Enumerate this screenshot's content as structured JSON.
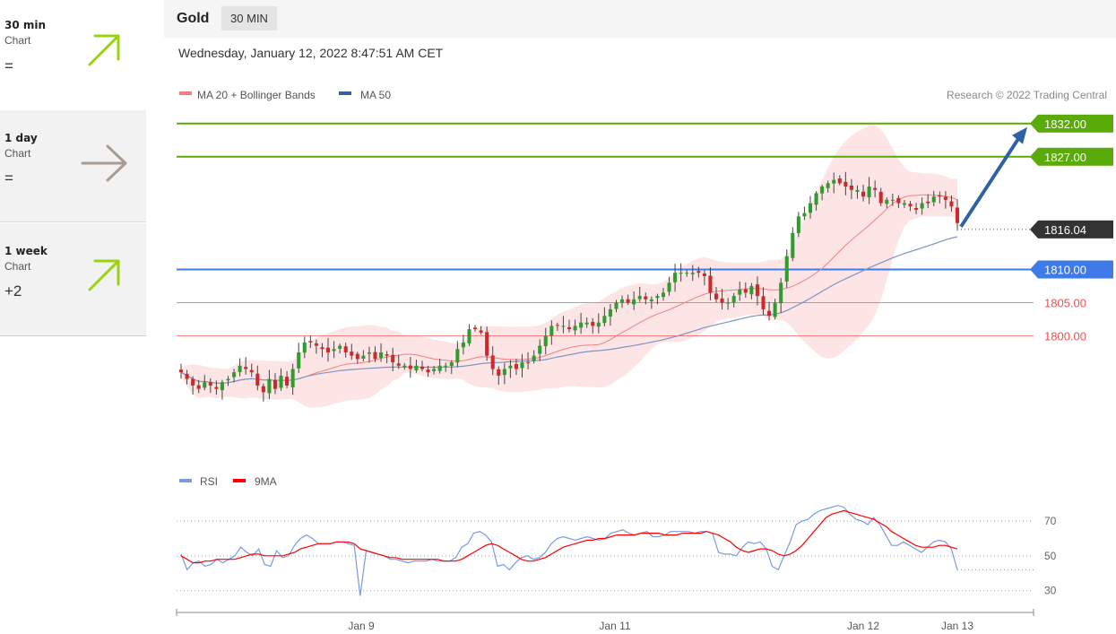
{
  "sidebar": {
    "timeframes": [
      {
        "title": "30 min",
        "subtitle": "Chart",
        "score": "=",
        "direction": "up",
        "arrow_icon": "arrow-up-right-icon",
        "color": "#9bd40f"
      },
      {
        "title": "1 day",
        "subtitle": "Chart",
        "score": "=",
        "direction": "neutral",
        "arrow_icon": "arrow-right-icon",
        "color": "#a79c91"
      },
      {
        "title": "1 week",
        "subtitle": "Chart",
        "score": "+2",
        "direction": "up",
        "arrow_icon": "arrow-up-right-icon",
        "color": "#9bd40f"
      }
    ]
  },
  "header": {
    "instrument": "Gold",
    "period": "30 MIN"
  },
  "datetime": "Wednesday, January 12, 2022 8:47:51 AM CET",
  "legend": {
    "ma20": "MA 20 + Bollinger Bands",
    "ma50": "MA 50",
    "ma20_color": "#f08080",
    "ma50_color": "#3a5fa0"
  },
  "credit": "Research © 2022 Trading Central",
  "rsi_legend": {
    "rsi": "RSI",
    "ma9": "9MA",
    "rsi_color": "#7a9ae0",
    "ma9_color": "#ff0000"
  },
  "chart_data": {
    "type": "candlestick",
    "x_ticks": [
      "Jan 9",
      "Jan 11",
      "Jan 12",
      "Jan 13"
    ],
    "ylim": [
      1781,
      1834
    ],
    "current_price": 1816.04,
    "levels": [
      {
        "value": 1832.0,
        "label": "1832.00",
        "kind": "target",
        "color": "#5aaa0a"
      },
      {
        "value": 1827.0,
        "label": "1827.00",
        "kind": "target",
        "color": "#5aaa0a"
      },
      {
        "value": 1810.0,
        "label": "1810.00",
        "kind": "pivot",
        "color": "#3e7be8"
      },
      {
        "value": 1805.0,
        "label": "1805.00",
        "kind": "support",
        "color": "#f05050"
      },
      {
        "value": 1800.0,
        "label": "1800.00",
        "kind": "support",
        "color": "#f05050"
      }
    ],
    "closes": [
      1794.5,
      1793.5,
      1792.5,
      1792.0,
      1793.0,
      1792.5,
      1792.0,
      1793.0,
      1793.5,
      1794.5,
      1795.5,
      1795.0,
      1794.5,
      1792.5,
      1791.5,
      1793.5,
      1792.0,
      1794.0,
      1792.5,
      1795.0,
      1797.5,
      1799.0,
      1799.0,
      1798.5,
      1798.0,
      1797.5,
      1798.0,
      1798.5,
      1797.5,
      1797.0,
      1796.5,
      1797.0,
      1797.5,
      1796.5,
      1797.5,
      1797.0,
      1796.0,
      1795.5,
      1795.5,
      1795.0,
      1795.5,
      1795.0,
      1794.5,
      1795.0,
      1795.5,
      1795.5,
      1796.0,
      1798.0,
      1799.0,
      1801.0,
      1801.0,
      1800.5,
      1797.0,
      1795.0,
      1794.0,
      1795.0,
      1795.5,
      1795.0,
      1796.0,
      1796.0,
      1797.0,
      1798.5,
      1800.0,
      1801.5,
      1801.5,
      1801.5,
      1801.0,
      1801.5,
      1802.0,
      1802.0,
      1801.5,
      1802.0,
      1803.0,
      1804.0,
      1805.0,
      1805.5,
      1805.0,
      1805.5,
      1806.0,
      1805.5,
      1805.5,
      1806.0,
      1806.5,
      1808.0,
      1809.5,
      1809.5,
      1809.5,
      1809.5,
      1809.5,
      1809.0,
      1806.5,
      1805.5,
      1805.0,
      1805.0,
      1806.0,
      1807.0,
      1806.5,
      1807.5,
      1806.0,
      1804.0,
      1803.0,
      1805.0,
      1808.0,
      1812.0,
      1815.5,
      1818.0,
      1818.5,
      1820.0,
      1821.5,
      1822.5,
      1823.0,
      1823.5,
      1823.0,
      1822.5,
      1822.0,
      1822.0,
      1821.0,
      1822.5,
      1822.0,
      1820.0,
      1820.5,
      1820.5,
      1820.0,
      1820.0,
      1819.5,
      1819.0,
      1820.0,
      1820.0,
      1821.0,
      1821.0,
      1820.5,
      1819.5,
      1817.0
    ],
    "ma20_label": "MA 20 + Bollinger Bands",
    "ma50_label": "MA 50",
    "rsi": {
      "ylim": [
        20,
        85
      ],
      "ticks": [
        70,
        50,
        30
      ],
      "values": [
        51,
        42,
        46,
        47,
        44,
        45,
        48,
        46,
        48,
        50,
        55,
        52,
        50,
        54,
        45,
        44,
        53,
        49,
        50,
        56,
        60,
        62,
        60,
        57,
        57,
        57,
        58,
        58,
        57,
        56,
        27,
        53,
        52,
        51,
        50,
        48,
        48,
        47,
        46,
        47,
        47,
        47,
        48,
        47,
        47,
        47,
        49,
        55,
        57,
        63,
        64,
        62,
        58,
        44,
        45,
        42,
        46,
        49,
        50,
        48,
        49,
        52,
        57,
        60,
        61,
        60,
        59,
        60,
        61,
        60,
        59,
        60,
        63,
        64,
        65,
        63,
        62,
        63,
        64,
        61,
        61,
        62,
        64,
        64,
        64,
        64,
        63,
        64,
        64,
        63,
        52,
        51,
        51,
        50,
        55,
        58,
        57,
        58,
        54,
        44,
        42,
        50,
        58,
        68,
        70,
        71,
        74,
        76,
        77,
        78,
        79,
        78,
        74,
        71,
        70,
        68,
        72,
        68,
        62,
        56,
        56,
        58,
        56,
        54,
        52,
        55,
        58,
        59,
        58,
        54,
        42
      ],
      "ma9": [
        50,
        48,
        46,
        46,
        47,
        47,
        48,
        48,
        48,
        48,
        49,
        50,
        51,
        51,
        50,
        50,
        50,
        50,
        51,
        52,
        54,
        55,
        56,
        57,
        57,
        57,
        58,
        58,
        58,
        57,
        54,
        53,
        52,
        51,
        50,
        49,
        49,
        48,
        48,
        48,
        48,
        48,
        48,
        48,
        47,
        47,
        47,
        48,
        50,
        52,
        54,
        56,
        57,
        56,
        54,
        52,
        50,
        48,
        47,
        47,
        48,
        49,
        51,
        53,
        55,
        56,
        57,
        58,
        59,
        59,
        60,
        60,
        61,
        62,
        62,
        62,
        62,
        63,
        63,
        63,
        63,
        62,
        62,
        62,
        63,
        63,
        63,
        63,
        64,
        63,
        62,
        60,
        58,
        55,
        53,
        52,
        53,
        54,
        54,
        53,
        51,
        50,
        51,
        53,
        56,
        60,
        64,
        68,
        72,
        74,
        75,
        76,
        75,
        74,
        73,
        72,
        71,
        69,
        67,
        64,
        62,
        60,
        58,
        56,
        55,
        55,
        55,
        56,
        56,
        55,
        54
      ]
    }
  }
}
